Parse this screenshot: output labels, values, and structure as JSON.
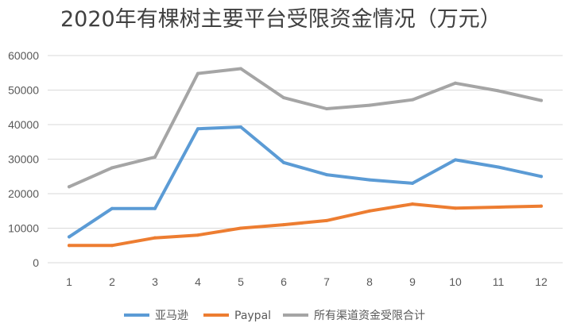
{
  "chart_data": {
    "type": "line",
    "title": "2020年有棵树主要平台受限资金情况（万元）",
    "xlabel": "",
    "ylabel": "",
    "categories": [
      "1",
      "2",
      "3",
      "4",
      "5",
      "6",
      "7",
      "8",
      "9",
      "10",
      "11",
      "12"
    ],
    "ylim": [
      0,
      60000
    ],
    "yticks": [
      0,
      10000,
      20000,
      30000,
      40000,
      50000,
      60000
    ],
    "grid": true,
    "legend_position": "bottom",
    "series": [
      {
        "name": "亚马逊",
        "color": "#5b9bd5",
        "values": [
          7500,
          15700,
          15700,
          38800,
          39300,
          29000,
          25500,
          24000,
          23000,
          29800,
          27700,
          25000
        ]
      },
      {
        "name": "Paypal",
        "color": "#ed7d31",
        "values": [
          5000,
          5000,
          7200,
          8000,
          10000,
          11000,
          12200,
          15000,
          17000,
          15800,
          16100,
          16400
        ]
      },
      {
        "name": "所有渠道资金受限合计",
        "color": "#a5a5a5",
        "values": [
          22000,
          27500,
          30600,
          54800,
          56200,
          47800,
          44600,
          45600,
          47200,
          52000,
          49800,
          47000
        ]
      }
    ]
  }
}
